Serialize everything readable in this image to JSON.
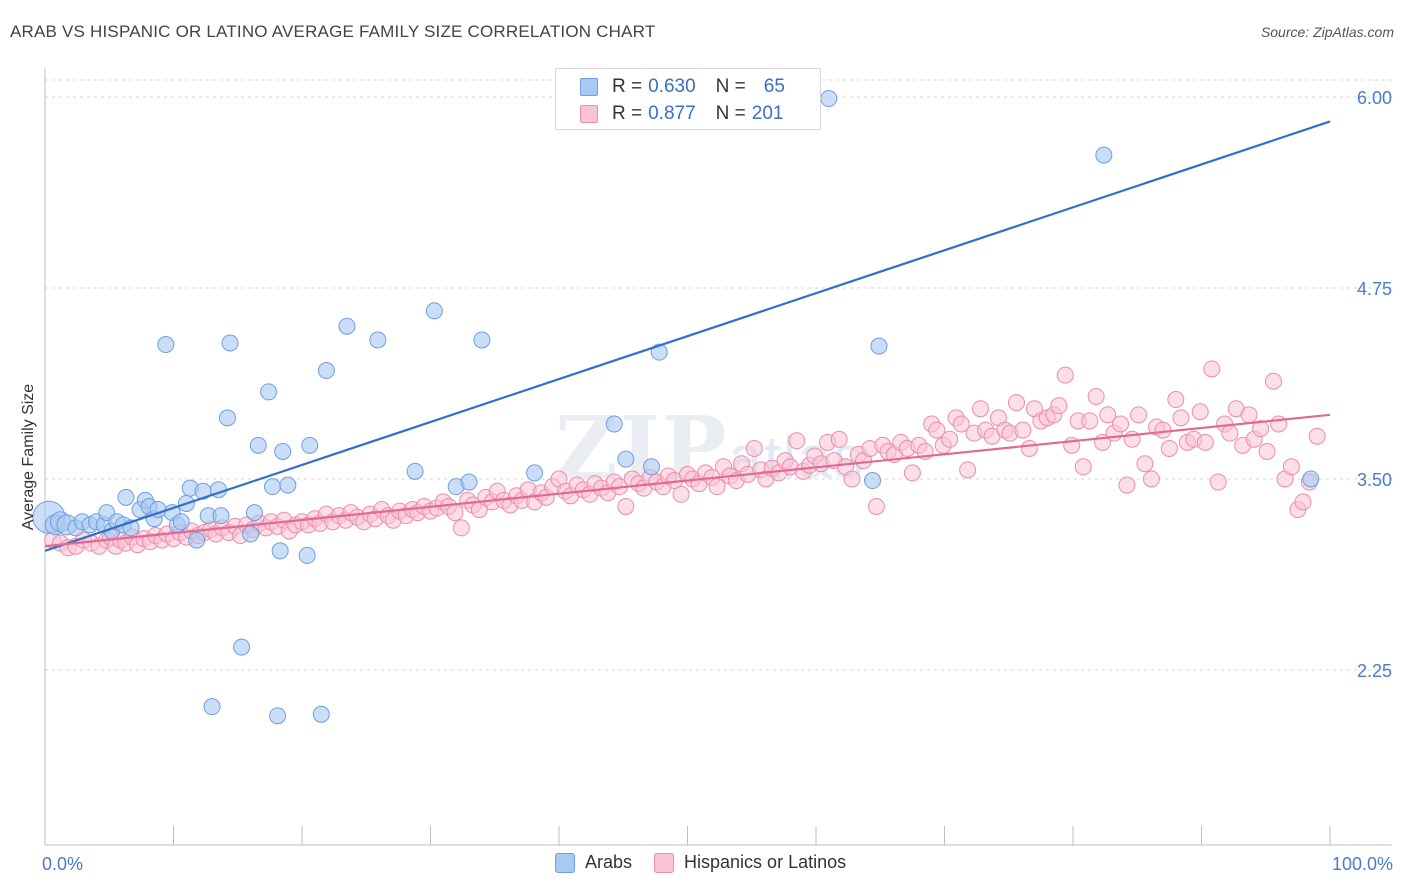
{
  "title": "ARAB VS HISPANIC OR LATINO AVERAGE FAMILY SIZE CORRELATION CHART",
  "source": "Source: ZipAtlas.com",
  "watermark": {
    "main": "ZIP",
    "sub": "atlas"
  },
  "legend": {
    "rows": [
      {
        "r_label": "R =",
        "r_value": "0.630",
        "n_label": "N =",
        "n_value": "65",
        "color": "#a9c8f2",
        "border": "#6e9fe0"
      },
      {
        "r_label": "R =",
        "r_value": "0.877",
        "n_label": "N =",
        "n_value": "201",
        "color": "#f9c3d3",
        "border": "#ee8cab"
      }
    ]
  },
  "bottom_legend": [
    {
      "label": "Arabs",
      "color": "#a9c8f2",
      "border": "#6e9fe0"
    },
    {
      "label": "Hispanics or Latinos",
      "color": "#f9c3d3",
      "border": "#ee8cab"
    }
  ],
  "chart_data": {
    "type": "scatter",
    "title": "ARAB VS HISPANIC OR LATINO AVERAGE FAMILY SIZE CORRELATION CHART",
    "xlabel": "",
    "ylabel": "Average Family Size",
    "xlim": [
      0,
      100
    ],
    "ylim": [
      1.25,
      6.25
    ],
    "x_tick_labels": [
      "0.0%",
      "100.0%"
    ],
    "y_ticks": [
      2.25,
      3.5,
      4.75,
      6.0
    ],
    "y_tick_labels": [
      "2.25",
      "3.50",
      "4.75",
      "6.00"
    ],
    "grid": "horizontal dashed",
    "legend_position": "top-center",
    "series": [
      {
        "name": "Arabs",
        "color": "#6e9fe0",
        "fill": "#a9c8f2",
        "trend": {
          "x": [
            0,
            100
          ],
          "y": [
            3.03,
            5.84
          ]
        },
        "points": [
          [
            0.3,
            3.25
          ],
          [
            0.8,
            3.2
          ],
          [
            1.2,
            3.22
          ],
          [
            1.7,
            3.2
          ],
          [
            2.4,
            3.18
          ],
          [
            2.9,
            3.22
          ],
          [
            3.5,
            3.2
          ],
          [
            4.0,
            3.22
          ],
          [
            4.6,
            3.2
          ],
          [
            4.8,
            3.28
          ],
          [
            5.2,
            3.16
          ],
          [
            5.6,
            3.22
          ],
          [
            6.1,
            3.2
          ],
          [
            6.3,
            3.38
          ],
          [
            6.7,
            3.18
          ],
          [
            7.4,
            3.3
          ],
          [
            7.8,
            3.36
          ],
          [
            8.1,
            3.32
          ],
          [
            8.5,
            3.24
          ],
          [
            8.8,
            3.3
          ],
          [
            9.4,
            4.38
          ],
          [
            9.9,
            3.28
          ],
          [
            10.3,
            3.2
          ],
          [
            10.6,
            3.22
          ],
          [
            11.0,
            3.34
          ],
          [
            11.3,
            3.44
          ],
          [
            11.8,
            3.1
          ],
          [
            12.3,
            3.42
          ],
          [
            12.7,
            3.26
          ],
          [
            13.0,
            2.01
          ],
          [
            13.5,
            3.43
          ],
          [
            13.7,
            3.26
          ],
          [
            14.2,
            3.9
          ],
          [
            14.4,
            4.39
          ],
          [
            15.3,
            2.4
          ],
          [
            16.0,
            3.14
          ],
          [
            16.3,
            3.28
          ],
          [
            16.6,
            3.72
          ],
          [
            17.4,
            4.07
          ],
          [
            17.7,
            3.45
          ],
          [
            18.1,
            1.95
          ],
          [
            18.3,
            3.03
          ],
          [
            18.5,
            3.68
          ],
          [
            18.9,
            3.46
          ],
          [
            20.4,
            3.0
          ],
          [
            20.6,
            3.72
          ],
          [
            21.5,
            1.96
          ],
          [
            21.9,
            4.21
          ],
          [
            23.5,
            4.5
          ],
          [
            25.9,
            4.41
          ],
          [
            28.8,
            3.55
          ],
          [
            30.3,
            4.6
          ],
          [
            32.0,
            3.45
          ],
          [
            33.0,
            3.48
          ],
          [
            34.0,
            4.41
          ],
          [
            38.1,
            3.54
          ],
          [
            44.3,
            3.86
          ],
          [
            45.2,
            3.63
          ],
          [
            47.2,
            3.58
          ],
          [
            47.8,
            4.33
          ],
          [
            61.0,
            5.99
          ],
          [
            64.4,
            3.49
          ],
          [
            64.9,
            4.37
          ],
          [
            82.4,
            5.62
          ],
          [
            98.5,
            3.5
          ]
        ]
      },
      {
        "name": "Hispanics or Latinos",
        "color": "#e8709a",
        "fill": "#f9c3d3",
        "trend": {
          "x": [
            0,
            100
          ],
          "y": [
            3.06,
            3.92
          ]
        },
        "points": [
          [
            0.6,
            3.1
          ],
          [
            1.2,
            3.08
          ],
          [
            1.8,
            3.05
          ],
          [
            2.4,
            3.06
          ],
          [
            3.0,
            3.1
          ],
          [
            3.6,
            3.08
          ],
          [
            4.2,
            3.06
          ],
          [
            4.8,
            3.1
          ],
          [
            5.1,
            3.12
          ],
          [
            5.5,
            3.06
          ],
          [
            5.9,
            3.1
          ],
          [
            6.3,
            3.08
          ],
          [
            6.8,
            3.12
          ],
          [
            7.2,
            3.07
          ],
          [
            7.7,
            3.11
          ],
          [
            8.2,
            3.09
          ],
          [
            8.6,
            3.13
          ],
          [
            9.1,
            3.1
          ],
          [
            9.5,
            3.14
          ],
          [
            10.0,
            3.11
          ],
          [
            10.5,
            3.15
          ],
          [
            11.0,
            3.12
          ],
          [
            11.4,
            3.16
          ],
          [
            11.9,
            3.13
          ],
          [
            12.4,
            3.15
          ],
          [
            12.9,
            3.17
          ],
          [
            13.3,
            3.14
          ],
          [
            13.8,
            3.18
          ],
          [
            14.3,
            3.15
          ],
          [
            14.8,
            3.19
          ],
          [
            15.2,
            3.13
          ],
          [
            15.7,
            3.2
          ],
          [
            16.2,
            3.17
          ],
          [
            16.7,
            3.21
          ],
          [
            17.2,
            3.18
          ],
          [
            17.6,
            3.22
          ],
          [
            18.1,
            3.19
          ],
          [
            18.6,
            3.23
          ],
          [
            19.0,
            3.16
          ],
          [
            19.5,
            3.2
          ],
          [
            20.0,
            3.22
          ],
          [
            20.5,
            3.2
          ],
          [
            21.0,
            3.24
          ],
          [
            21.4,
            3.21
          ],
          [
            21.9,
            3.27
          ],
          [
            22.4,
            3.22
          ],
          [
            22.9,
            3.26
          ],
          [
            23.4,
            3.23
          ],
          [
            23.8,
            3.28
          ],
          [
            24.3,
            3.25
          ],
          [
            24.8,
            3.22
          ],
          [
            25.3,
            3.27
          ],
          [
            25.7,
            3.24
          ],
          [
            26.2,
            3.3
          ],
          [
            26.7,
            3.26
          ],
          [
            27.1,
            3.23
          ],
          [
            27.6,
            3.29
          ],
          [
            28.1,
            3.26
          ],
          [
            28.6,
            3.3
          ],
          [
            29.0,
            3.28
          ],
          [
            29.5,
            3.32
          ],
          [
            30.0,
            3.29
          ],
          [
            30.5,
            3.31
          ],
          [
            31.0,
            3.35
          ],
          [
            31.4,
            3.32
          ],
          [
            31.9,
            3.28
          ],
          [
            32.4,
            3.18
          ],
          [
            32.9,
            3.36
          ],
          [
            33.3,
            3.33
          ],
          [
            33.8,
            3.3
          ],
          [
            34.3,
            3.38
          ],
          [
            34.8,
            3.35
          ],
          [
            35.2,
            3.42
          ],
          [
            35.7,
            3.36
          ],
          [
            36.2,
            3.33
          ],
          [
            36.7,
            3.39
          ],
          [
            37.1,
            3.36
          ],
          [
            37.6,
            3.43
          ],
          [
            38.1,
            3.35
          ],
          [
            38.6,
            3.41
          ],
          [
            39.0,
            3.38
          ],
          [
            39.5,
            3.45
          ],
          [
            40.0,
            3.5
          ],
          [
            40.5,
            3.42
          ],
          [
            40.9,
            3.39
          ],
          [
            41.4,
            3.46
          ],
          [
            41.9,
            3.43
          ],
          [
            42.4,
            3.4
          ],
          [
            42.8,
            3.47
          ],
          [
            43.3,
            3.44
          ],
          [
            43.8,
            3.41
          ],
          [
            44.3,
            3.48
          ],
          [
            44.7,
            3.45
          ],
          [
            45.2,
            3.32
          ],
          [
            45.7,
            3.5
          ],
          [
            46.2,
            3.47
          ],
          [
            46.6,
            3.44
          ],
          [
            47.1,
            3.51
          ],
          [
            47.6,
            3.48
          ],
          [
            48.1,
            3.45
          ],
          [
            48.5,
            3.52
          ],
          [
            49.0,
            3.49
          ],
          [
            49.5,
            3.4
          ],
          [
            50.0,
            3.53
          ],
          [
            50.4,
            3.5
          ],
          [
            50.9,
            3.47
          ],
          [
            51.4,
            3.54
          ],
          [
            51.9,
            3.51
          ],
          [
            52.3,
            3.45
          ],
          [
            52.8,
            3.58
          ],
          [
            53.3,
            3.52
          ],
          [
            53.8,
            3.49
          ],
          [
            54.2,
            3.6
          ],
          [
            54.7,
            3.53
          ],
          [
            55.2,
            3.7
          ],
          [
            55.7,
            3.56
          ],
          [
            56.1,
            3.5
          ],
          [
            56.6,
            3.57
          ],
          [
            57.1,
            3.54
          ],
          [
            57.6,
            3.62
          ],
          [
            58.0,
            3.58
          ],
          [
            58.5,
            3.75
          ],
          [
            59.0,
            3.55
          ],
          [
            59.5,
            3.59
          ],
          [
            59.9,
            3.65
          ],
          [
            60.4,
            3.6
          ],
          [
            60.9,
            3.74
          ],
          [
            61.4,
            3.62
          ],
          [
            61.8,
            3.76
          ],
          [
            62.3,
            3.58
          ],
          [
            62.8,
            3.5
          ],
          [
            63.3,
            3.66
          ],
          [
            63.7,
            3.62
          ],
          [
            64.2,
            3.7
          ],
          [
            64.7,
            3.32
          ],
          [
            65.2,
            3.72
          ],
          [
            65.6,
            3.68
          ],
          [
            66.1,
            3.66
          ],
          [
            66.6,
            3.74
          ],
          [
            67.1,
            3.7
          ],
          [
            67.5,
            3.54
          ],
          [
            68.0,
            3.72
          ],
          [
            68.5,
            3.68
          ],
          [
            69.0,
            3.86
          ],
          [
            69.4,
            3.82
          ],
          [
            69.9,
            3.72
          ],
          [
            70.4,
            3.76
          ],
          [
            70.9,
            3.9
          ],
          [
            71.3,
            3.86
          ],
          [
            71.8,
            3.56
          ],
          [
            72.3,
            3.8
          ],
          [
            72.8,
            3.96
          ],
          [
            73.2,
            3.82
          ],
          [
            73.7,
            3.78
          ],
          [
            74.2,
            3.9
          ],
          [
            74.7,
            3.82
          ],
          [
            75.1,
            3.8
          ],
          [
            75.6,
            4.0
          ],
          [
            76.1,
            3.82
          ],
          [
            76.6,
            3.7
          ],
          [
            77.0,
            3.96
          ],
          [
            77.5,
            3.88
          ],
          [
            78.0,
            3.9
          ],
          [
            78.5,
            3.92
          ],
          [
            78.9,
            3.98
          ],
          [
            79.4,
            4.18
          ],
          [
            79.9,
            3.72
          ],
          [
            80.4,
            3.88
          ],
          [
            80.8,
            3.58
          ],
          [
            81.3,
            3.88
          ],
          [
            81.8,
            4.04
          ],
          [
            82.3,
            3.74
          ],
          [
            82.7,
            3.92
          ],
          [
            83.2,
            3.8
          ],
          [
            83.7,
            3.86
          ],
          [
            84.2,
            3.46
          ],
          [
            84.6,
            3.76
          ],
          [
            85.1,
            3.92
          ],
          [
            85.6,
            3.6
          ],
          [
            86.1,
            3.5
          ],
          [
            86.5,
            3.84
          ],
          [
            87.0,
            3.82
          ],
          [
            87.5,
            3.7
          ],
          [
            88.0,
            4.02
          ],
          [
            88.4,
            3.9
          ],
          [
            88.9,
            3.74
          ],
          [
            89.4,
            3.76
          ],
          [
            89.9,
            3.94
          ],
          [
            90.3,
            3.74
          ],
          [
            90.8,
            4.22
          ],
          [
            91.3,
            3.48
          ],
          [
            91.8,
            3.86
          ],
          [
            92.2,
            3.8
          ],
          [
            92.7,
            3.96
          ],
          [
            93.2,
            3.72
          ],
          [
            93.7,
            3.92
          ],
          [
            94.1,
            3.76
          ],
          [
            94.6,
            3.83
          ],
          [
            95.1,
            3.68
          ],
          [
            95.6,
            4.14
          ],
          [
            96.0,
            3.86
          ],
          [
            96.5,
            3.5
          ],
          [
            97.0,
            3.58
          ],
          [
            97.5,
            3.3
          ],
          [
            97.9,
            3.35
          ],
          [
            98.4,
            3.48
          ],
          [
            99.0,
            3.78
          ]
        ]
      }
    ]
  }
}
